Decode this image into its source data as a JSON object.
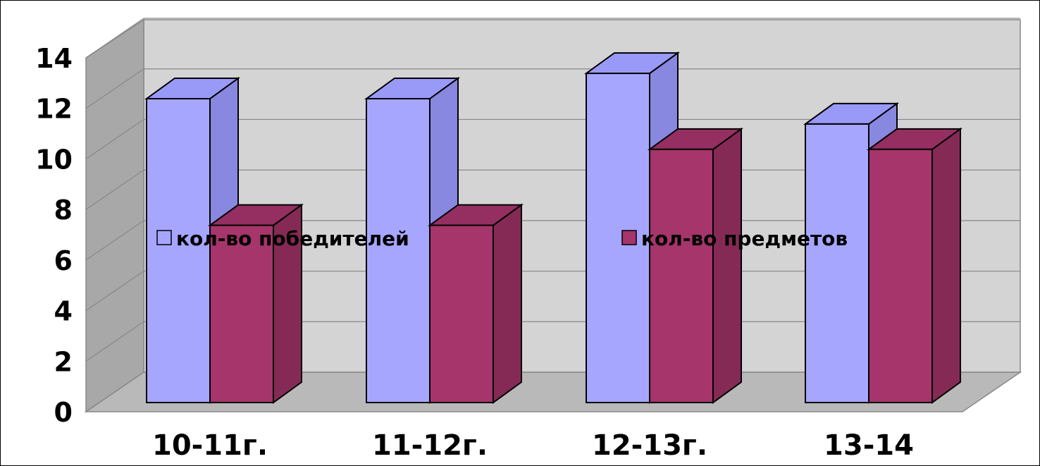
{
  "chart_data": {
    "type": "bar",
    "title": "",
    "xlabel": "",
    "ylabel": "",
    "ylim": [
      0,
      14
    ],
    "yticks": [
      0,
      2,
      4,
      6,
      8,
      10,
      12,
      14
    ],
    "grid": true,
    "legend_placement": "center",
    "categories": [
      "10-11г.",
      "11-12г.",
      "12-13г.",
      "13-14"
    ],
    "series": [
      {
        "name": "кол-во победителей",
        "values": [
          12,
          12,
          13,
          11
        ]
      },
      {
        "name": "кол-во предметов",
        "values": [
          7,
          7,
          10,
          10
        ]
      }
    ],
    "colors": {
      "series0": {
        "front": "#a6a6ff",
        "side": "#8888e0",
        "top": "#9999f8"
      },
      "series1": {
        "front": "#a5356b",
        "side": "#852a55",
        "top": "#952f61"
      },
      "back_wall": "#d4d4d4",
      "left_wall": "#a8a8a8",
      "floor": "#b9b9b9",
      "grid": "#888888"
    }
  }
}
